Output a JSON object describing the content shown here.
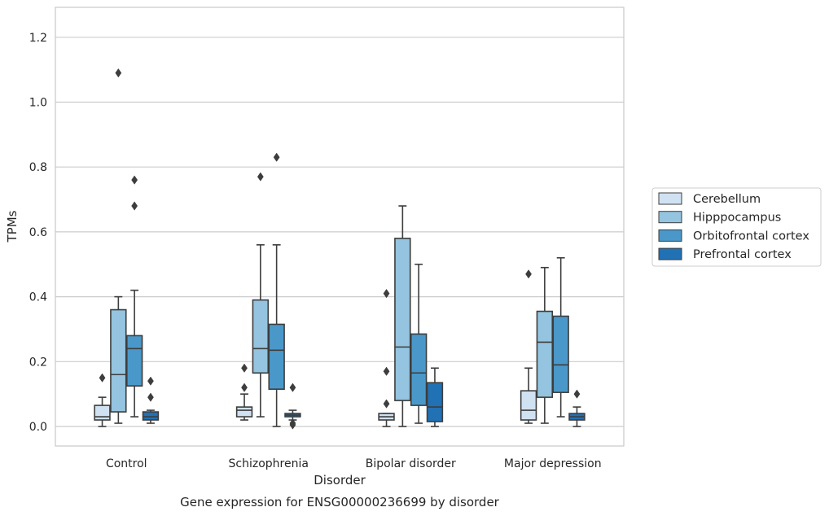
{
  "caption": "Gene expression for ENSG00000236699 by disorder",
  "chart_data": {
    "type": "boxplot",
    "xlabel": "Disorder",
    "ylabel": "TPMs",
    "ylim": [
      -0.06,
      1.29
    ],
    "yticks": [
      0.0,
      0.2,
      0.4,
      0.6,
      0.8,
      1.0,
      1.2
    ],
    "ytick_labels": [
      "0.0",
      "0.2",
      "0.4",
      "0.6",
      "0.8",
      "1.0",
      "1.2"
    ],
    "grid": "horizontal",
    "legend_position": "right",
    "categories": [
      "Control",
      "Schizophrenia",
      "Bipolar disorder",
      "Major depression"
    ],
    "series": [
      {
        "name": "Cerebellum",
        "color": "#d0e1f2",
        "boxes": [
          {
            "whislo": 0.0,
            "q1": 0.02,
            "med": 0.03,
            "q3": 0.065,
            "whishi": 0.09,
            "fliers": [
              0.15
            ]
          },
          {
            "whislo": 0.02,
            "q1": 0.03,
            "med": 0.05,
            "q3": 0.06,
            "whishi": 0.1,
            "fliers": [
              0.12,
              0.18
            ]
          },
          {
            "whislo": 0.0,
            "q1": 0.02,
            "med": 0.03,
            "q3": 0.04,
            "whishi": 0.04,
            "fliers": [
              0.07,
              0.17,
              0.41
            ]
          },
          {
            "whislo": 0.01,
            "q1": 0.02,
            "med": 0.05,
            "q3": 0.11,
            "whishi": 0.18,
            "fliers": [
              0.47
            ]
          }
        ]
      },
      {
        "name": "Hipppocampus",
        "color": "#94c4df",
        "boxes": [
          {
            "whislo": 0.01,
            "q1": 0.045,
            "med": 0.16,
            "q3": 0.36,
            "whishi": 0.4,
            "fliers": [
              1.09
            ]
          },
          {
            "whislo": 0.03,
            "q1": 0.165,
            "med": 0.24,
            "q3": 0.39,
            "whishi": 0.56,
            "fliers": [
              0.77
            ]
          },
          {
            "whislo": 0.0,
            "q1": 0.08,
            "med": 0.245,
            "q3": 0.58,
            "whishi": 0.68,
            "fliers": []
          },
          {
            "whislo": 0.01,
            "q1": 0.09,
            "med": 0.26,
            "q3": 0.355,
            "whishi": 0.49,
            "fliers": []
          }
        ]
      },
      {
        "name": "Orbitofrontal cortex",
        "color": "#4a98c9",
        "boxes": [
          {
            "whislo": 0.03,
            "q1": 0.125,
            "med": 0.24,
            "q3": 0.28,
            "whishi": 0.42,
            "fliers": [
              0.68,
              0.76
            ]
          },
          {
            "whislo": 0.0,
            "q1": 0.115,
            "med": 0.235,
            "q3": 0.315,
            "whishi": 0.56,
            "fliers": [
              0.83
            ]
          },
          {
            "whislo": 0.01,
            "q1": 0.065,
            "med": 0.165,
            "q3": 0.285,
            "whishi": 0.5,
            "fliers": []
          },
          {
            "whislo": 0.03,
            "q1": 0.105,
            "med": 0.19,
            "q3": 0.34,
            "whishi": 0.52,
            "fliers": []
          }
        ]
      },
      {
        "name": "Prefrontal cortex",
        "color": "#2171b5",
        "boxes": [
          {
            "whislo": 0.01,
            "q1": 0.02,
            "med": 0.03,
            "q3": 0.045,
            "whishi": 0.05,
            "fliers": [
              0.09,
              0.14
            ]
          },
          {
            "whislo": 0.02,
            "q1": 0.03,
            "med": 0.035,
            "q3": 0.04,
            "whishi": 0.05,
            "fliers": [
              0.005,
              0.01,
              0.12
            ]
          },
          {
            "whislo": 0.0,
            "q1": 0.015,
            "med": 0.06,
            "q3": 0.135,
            "whishi": 0.18,
            "fliers": []
          },
          {
            "whislo": 0.0,
            "q1": 0.02,
            "med": 0.03,
            "q3": 0.04,
            "whishi": 0.06,
            "fliers": [
              0.1
            ]
          }
        ]
      }
    ]
  }
}
